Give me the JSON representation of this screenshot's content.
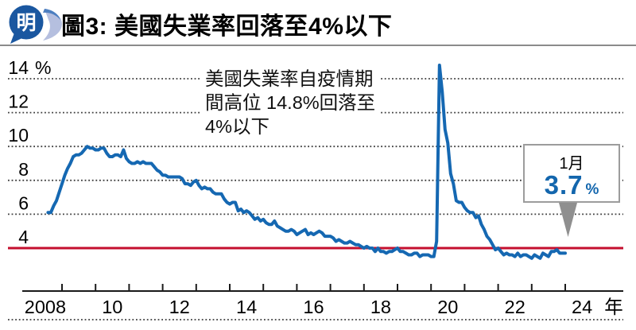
{
  "header": {
    "logo_text": "明",
    "title": "圖3: 美國失業率回落至4%以下"
  },
  "annotation": {
    "line1": "美國失業率自疫情期",
    "line2": "間高位 14.8%回落至",
    "line3": "4%以下"
  },
  "callout": {
    "month_label": "1月",
    "value": "3.7",
    "unit": "%"
  },
  "colors": {
    "line_blue": "#1568b2",
    "threshold_red": "#c40f2e",
    "axis_black": "#1a1a1a",
    "grid_gray": "#3d3d3d",
    "logo_blue": "#1a57a0",
    "logo_light_blue": "#b5bfdf",
    "logo_mid_blue": "#4d7fc0",
    "callout_blue": "#1366ad",
    "arrow_gray": "#8f8f8f"
  },
  "chart_data": {
    "type": "line",
    "title": "美國失業率回落至4%以下",
    "xlabel": "年",
    "ylabel": "%",
    "y_axis_unit": "%",
    "x_axis_unit": "年",
    "ylim": [
      1.5,
      15.4
    ],
    "x_range_years": [
      2008,
      2024.8
    ],
    "grid": "dotted-horizontal",
    "y_ticks": [
      14,
      12,
      10,
      8,
      6,
      4
    ],
    "x_tick_labels": [
      "2008",
      "10",
      "12",
      "14",
      "16",
      "18",
      "20",
      "22",
      "24"
    ],
    "threshold_value": 4,
    "latest": {
      "label": "1月",
      "value": 3.7
    },
    "series": {
      "name": "美國失業率",
      "frequency": "monthly",
      "start_year": 2008,
      "start_month": 8,
      "values": [
        6.1,
        6.1,
        6.5,
        6.8,
        7.3,
        7.8,
        8.3,
        8.7,
        9.0,
        9.4,
        9.5,
        9.5,
        9.6,
        9.8,
        10.0,
        9.9,
        9.9,
        9.8,
        9.8,
        9.9,
        9.9,
        9.6,
        9.4,
        9.4,
        9.5,
        9.5,
        9.4,
        9.8,
        9.3,
        9.1,
        9.0,
        9.0,
        9.1,
        9.0,
        9.1,
        9.0,
        9.0,
        9.0,
        8.8,
        8.6,
        8.5,
        8.3,
        8.3,
        8.2,
        8.2,
        8.2,
        8.2,
        8.2,
        8.1,
        7.8,
        7.8,
        7.7,
        7.9,
        8.0,
        7.7,
        7.5,
        7.6,
        7.5,
        7.5,
        7.3,
        7.2,
        7.2,
        7.2,
        6.9,
        6.7,
        6.6,
        6.7,
        6.7,
        6.2,
        6.3,
        6.1,
        6.2,
        6.1,
        5.9,
        5.7,
        5.8,
        5.6,
        5.7,
        5.5,
        5.4,
        5.4,
        5.6,
        5.3,
        5.2,
        5.1,
        5.0,
        5.0,
        5.1,
        5.0,
        4.8,
        4.9,
        5.0,
        5.1,
        4.8,
        4.9,
        4.8,
        4.9,
        5.0,
        4.9,
        4.7,
        4.7,
        4.7,
        4.6,
        4.4,
        4.5,
        4.4,
        4.3,
        4.3,
        4.4,
        4.3,
        4.2,
        4.2,
        4.1,
        4.0,
        4.1,
        4.0,
        4.0,
        3.8,
        4.0,
        3.8,
        3.8,
        3.7,
        3.8,
        3.8,
        3.9,
        4.0,
        3.8,
        3.8,
        3.7,
        3.6,
        3.6,
        3.7,
        3.7,
        3.5,
        3.6,
        3.6,
        3.6,
        3.5,
        3.5,
        4.4,
        14.8,
        13.2,
        11.0,
        10.2,
        8.4,
        7.8,
        6.8,
        6.7,
        6.7,
        6.4,
        6.2,
        6.1,
        6.1,
        5.8,
        5.9,
        5.4,
        5.1,
        4.7,
        4.5,
        4.2,
        3.9,
        4.0,
        3.8,
        3.6,
        3.7,
        3.6,
        3.6,
        3.5,
        3.7,
        3.5,
        3.6,
        3.6,
        3.5,
        3.4,
        3.6,
        3.5,
        3.4,
        3.7,
        3.6,
        3.5,
        3.8,
        3.8,
        3.9,
        3.7,
        3.7,
        3.7
      ]
    }
  }
}
